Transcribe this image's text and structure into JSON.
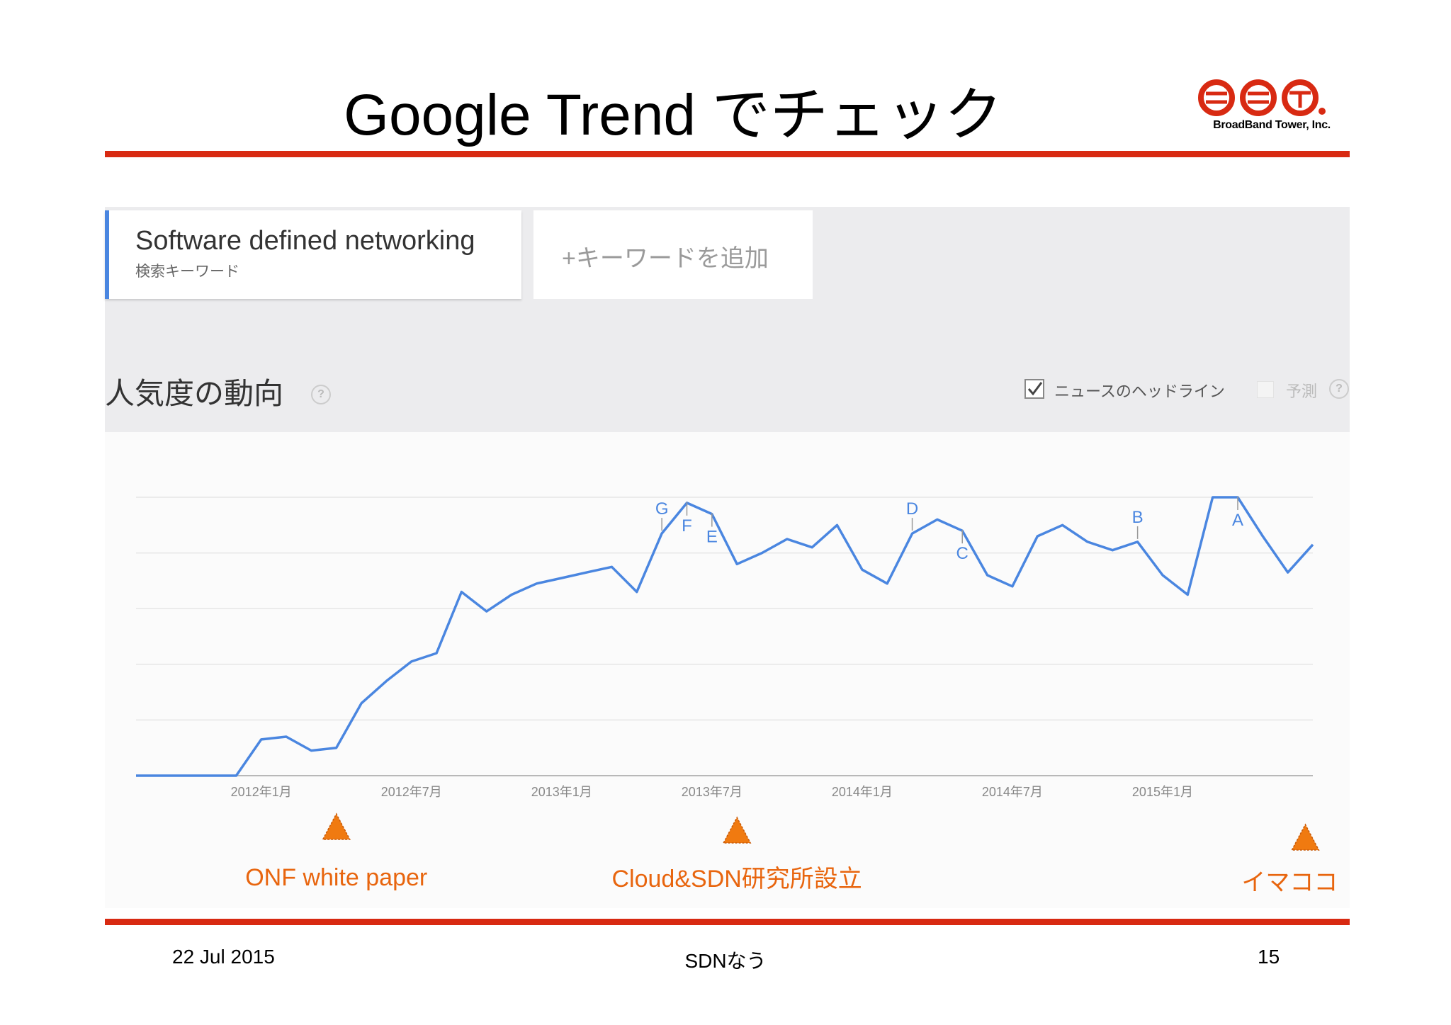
{
  "slide": {
    "title": "Google Trend でチェック",
    "logo_text": "BroadBand Tower, Inc.",
    "accent_color": "#d82a12"
  },
  "search": {
    "keyword": "Software defined networking",
    "keyword_type": "検索キーワード",
    "add_keyword": "+キーワードを追加"
  },
  "section": {
    "title": "人気度の動向",
    "news_headlines_label": "ニュースのヘッドライン",
    "news_headlines_checked": true,
    "forecast_label": "予測",
    "forecast_checked": false,
    "help_icon": "?"
  },
  "chart_data": {
    "type": "line",
    "line_color": "#4a86e0",
    "grid": true,
    "ylim": [
      0,
      100
    ],
    "x_ticks": [
      {
        "t": 12,
        "label": "2012年1月"
      },
      {
        "t": 18,
        "label": "2012年7月"
      },
      {
        "t": 24,
        "label": "2013年1月"
      },
      {
        "t": 30,
        "label": "2013年7月"
      },
      {
        "t": 36,
        "label": "2014年1月"
      },
      {
        "t": 42,
        "label": "2014年7月"
      },
      {
        "t": 48,
        "label": "2015年1月"
      }
    ],
    "series": [
      {
        "points": [
          [
            7,
            0
          ],
          [
            8,
            0
          ],
          [
            9,
            0
          ],
          [
            10,
            0
          ],
          [
            11,
            0
          ],
          [
            12,
            13
          ],
          [
            13,
            14
          ],
          [
            14,
            9
          ],
          [
            15,
            10
          ],
          [
            16,
            26
          ],
          [
            17,
            34
          ],
          [
            18,
            41
          ],
          [
            19,
            44
          ],
          [
            20,
            66
          ],
          [
            21,
            59
          ],
          [
            22,
            65
          ],
          [
            23,
            69
          ],
          [
            24,
            71
          ],
          [
            25,
            73
          ],
          [
            26,
            75
          ],
          [
            27,
            66
          ],
          [
            28,
            87
          ],
          [
            29,
            98
          ],
          [
            30,
            94
          ],
          [
            31,
            76
          ],
          [
            32,
            80
          ],
          [
            33,
            85
          ],
          [
            34,
            82
          ],
          [
            35,
            90
          ],
          [
            36,
            74
          ],
          [
            37,
            69
          ],
          [
            38,
            87
          ],
          [
            39,
            92
          ],
          [
            40,
            88
          ],
          [
            41,
            72
          ],
          [
            42,
            68
          ],
          [
            43,
            86
          ],
          [
            44,
            90
          ],
          [
            45,
            84
          ],
          [
            46,
            81
          ],
          [
            47,
            84
          ],
          [
            48,
            72
          ],
          [
            49,
            65
          ],
          [
            50,
            100
          ],
          [
            51,
            100
          ],
          [
            52,
            86
          ],
          [
            53,
            73
          ],
          [
            54,
            83
          ]
        ]
      }
    ],
    "annotations": [
      {
        "label": "G",
        "t": 28,
        "pos": "above"
      },
      {
        "label": "F",
        "t": 29,
        "pos": "below"
      },
      {
        "label": "E",
        "t": 30,
        "pos": "below"
      },
      {
        "label": "D",
        "t": 38,
        "pos": "above"
      },
      {
        "label": "C",
        "t": 40,
        "pos": "below"
      },
      {
        "label": "B",
        "t": 47,
        "pos": "above"
      },
      {
        "label": "A",
        "t": 51,
        "pos": "below"
      }
    ],
    "events": [
      {
        "label": "ONF white paper",
        "t": 15
      },
      {
        "label": "Cloud&SDN研究所設立",
        "t": 31
      },
      {
        "label": "イマココ",
        "t": 53.7
      }
    ],
    "event_marker_color": "#f07a10"
  },
  "footer": {
    "date": "22 Jul 2015",
    "center": "SDNなう",
    "page": "15"
  }
}
